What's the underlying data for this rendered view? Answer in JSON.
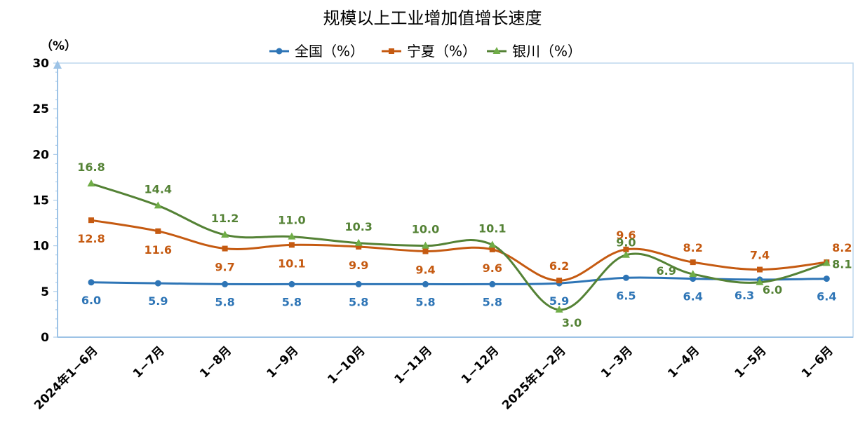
{
  "chart_data": {
    "type": "line",
    "title": "规模以上工业增加值增长速度",
    "ylabel": "（%）",
    "ylim": [
      0,
      30
    ],
    "yticks": [
      0,
      5,
      10,
      15,
      20,
      25,
      30
    ],
    "grid": false,
    "legend_position": "top",
    "categories": [
      "2024年1−6月",
      "1−7月",
      "1−8月",
      "1−9月",
      "1−10月",
      "1−11月",
      "1−12月",
      "2025年1−2月",
      "1−3月",
      "1−4月",
      "1−5月",
      "1−6月"
    ],
    "series": [
      {
        "name": "全国（%）",
        "color": "#2E75B6",
        "marker": "circle",
        "values": [
          6.0,
          5.9,
          5.8,
          5.8,
          5.8,
          5.8,
          5.8,
          5.9,
          6.5,
          6.4,
          6.3,
          6.4
        ],
        "labels": [
          "6.0",
          "5.9",
          "5.8",
          "5.8",
          "5.8",
          "5.8",
          "5.8",
          "5.9",
          "6.5",
          "6.4",
          "6.3",
          "6.4"
        ]
      },
      {
        "name": "宁夏（%）",
        "color": "#C55A11",
        "marker": "square",
        "values": [
          12.8,
          11.6,
          9.7,
          10.1,
          9.9,
          9.4,
          9.6,
          6.2,
          9.6,
          8.2,
          7.4,
          8.2
        ],
        "labels": [
          "12.8",
          "11.6",
          "9.7",
          "10.1",
          "9.9",
          "9.4",
          "9.6",
          "6.2",
          "9.6",
          "8.2",
          "7.4",
          "8.2"
        ]
      },
      {
        "name": "银川（%）",
        "color": "#548235",
        "marker": "triangle",
        "values": [
          16.8,
          14.4,
          11.2,
          11.0,
          10.3,
          10.0,
          10.1,
          3.0,
          9.0,
          6.9,
          6.0,
          8.1
        ],
        "labels": [
          "16.8",
          "14.4",
          "11.2",
          "11.0",
          "10.3",
          "10.0",
          "10.1",
          "3.0",
          "9.0",
          "6.9",
          "6.0",
          "8.1"
        ]
      }
    ]
  }
}
